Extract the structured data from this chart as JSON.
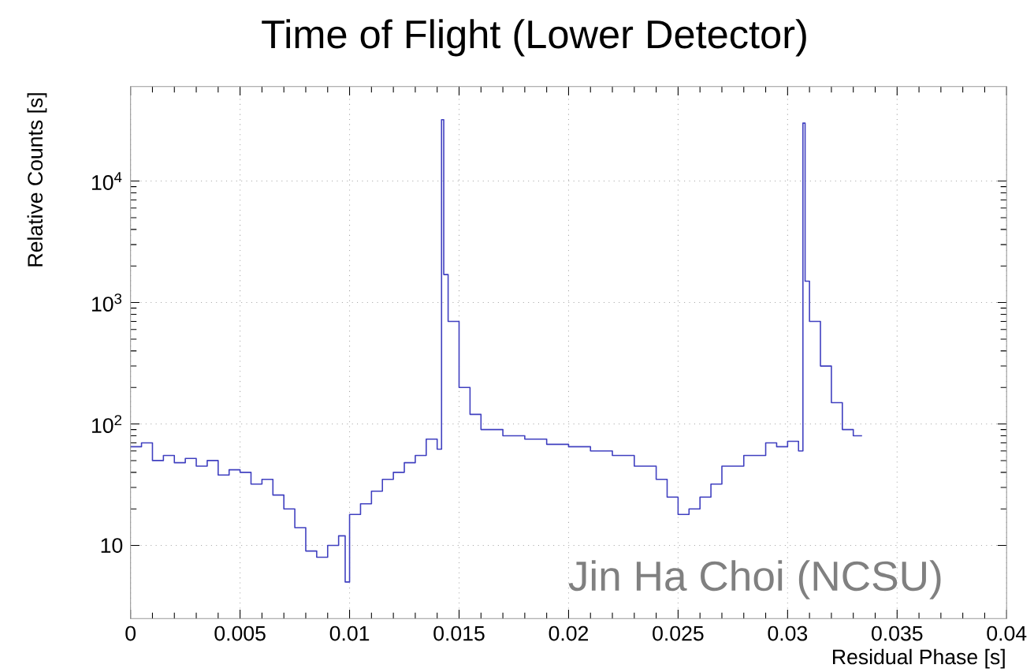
{
  "chart_data": {
    "type": "step",
    "title": "Time of Flight (Lower Detector)",
    "xlabel": "Residual Phase [s]",
    "ylabel": "Relative Counts [s]",
    "annotations": [
      "Jin Ha Choi (NCSU)"
    ],
    "log": "y",
    "grid": true,
    "xlim": [
      0,
      0.04
    ],
    "ylim": [
      2.5,
      60000
    ],
    "xticks": [
      0,
      0.005,
      0.01,
      0.015,
      0.02,
      0.025,
      0.03,
      0.035,
      0.04
    ],
    "yticks": [
      10,
      {
        "value": 100,
        "label": "10$^{2}$"
      },
      {
        "value": 1000,
        "label": "10$^{3}$"
      },
      {
        "value": 10000,
        "label": "10$^{4}$"
      }
    ],
    "series": [
      {
        "color": "#4040c0",
        "x": [
          0,
          0.0005,
          0.001,
          0.0015,
          0.002,
          0.0025,
          0.003,
          0.0035,
          0.004,
          0.0045,
          0.005,
          0.0055,
          0.006,
          0.0065,
          0.007,
          0.0075,
          0.008,
          0.0085,
          0.009,
          0.0095,
          0.0098,
          0.01,
          0.0105,
          0.011,
          0.0115,
          0.012,
          0.0125,
          0.013,
          0.0135,
          0.014,
          0.0142,
          0.0143,
          0.0145,
          0.015,
          0.0155,
          0.016,
          0.017,
          0.018,
          0.019,
          0.02,
          0.021,
          0.022,
          0.023,
          0.024,
          0.0245,
          0.025,
          0.0255,
          0.026,
          0.0265,
          0.027,
          0.028,
          0.029,
          0.0295,
          0.03,
          0.0305,
          0.0307,
          0.0308,
          0.031,
          0.0315,
          0.032,
          0.0325,
          0.033,
          0.0334
        ],
        "values": [
          65,
          70,
          50,
          55,
          48,
          52,
          45,
          50,
          38,
          42,
          40,
          32,
          35,
          26,
          20,
          14,
          9,
          8,
          10,
          12,
          5,
          18,
          22,
          28,
          35,
          40,
          48,
          55,
          75,
          62,
          32000,
          1700,
          700,
          200,
          120,
          90,
          80,
          75,
          68,
          65,
          60,
          55,
          45,
          35,
          25,
          18,
          20,
          25,
          32,
          45,
          55,
          70,
          65,
          72,
          60,
          30000,
          1500,
          700,
          300,
          150,
          90,
          80,
          80
        ]
      }
    ]
  }
}
